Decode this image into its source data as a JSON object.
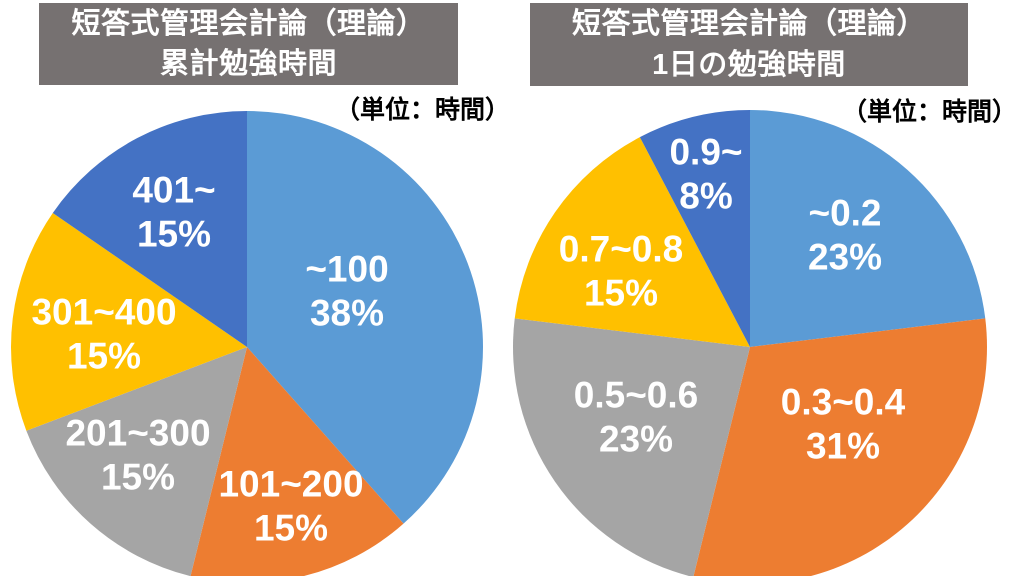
{
  "page": {
    "background_color": "#ffffff",
    "title_box_color": "#767171",
    "title_text_color": "#ffffff",
    "slice_label_color": "#ffffff",
    "unit_label_color": "#000000"
  },
  "chart_data": [
    {
      "type": "pie",
      "title_line1": "短答式管理会計論（理論）",
      "title_line2": "累計勉強時間",
      "unit_label": "（単位：時間）",
      "legend_position": "none",
      "start_angle_deg": 0,
      "direction": "clockwise",
      "slices": [
        {
          "label": "~100",
          "pct": 38,
          "pct_label": "38%",
          "weight": 5,
          "color": "#5B9BD5"
        },
        {
          "label": "101~200",
          "pct": 15,
          "pct_label": "15%",
          "weight": 2,
          "color": "#ED7D31"
        },
        {
          "label": "201~300",
          "pct": 15,
          "pct_label": "15%",
          "weight": 2,
          "color": "#A5A5A5"
        },
        {
          "label": "301~400",
          "pct": 15,
          "pct_label": "15%",
          "weight": 2,
          "color": "#FFC000"
        },
        {
          "label": "401~",
          "pct": 15,
          "pct_label": "15%",
          "weight": 2,
          "color": "#4472C4"
        }
      ]
    },
    {
      "type": "pie",
      "title_line1": "短答式管理会計論（理論）",
      "title_line2": "1日の勉強時間",
      "unit_label": "（単位：時間）",
      "legend_position": "none",
      "start_angle_deg": 0,
      "direction": "clockwise",
      "slices": [
        {
          "label": "~0.2",
          "pct": 23,
          "pct_label": "23%",
          "weight": 3,
          "color": "#5B9BD5"
        },
        {
          "label": "0.3~0.4",
          "pct": 31,
          "pct_label": "31%",
          "weight": 4,
          "color": "#ED7D31"
        },
        {
          "label": "0.5~0.6",
          "pct": 23,
          "pct_label": "23%",
          "weight": 3,
          "color": "#A5A5A5"
        },
        {
          "label": "0.7~0.8",
          "pct": 15,
          "pct_label": "15%",
          "weight": 2,
          "color": "#FFC000"
        },
        {
          "label": "0.9~",
          "pct": 8,
          "pct_label": "8%",
          "weight": 1,
          "color": "#4472C4"
        }
      ]
    }
  ]
}
